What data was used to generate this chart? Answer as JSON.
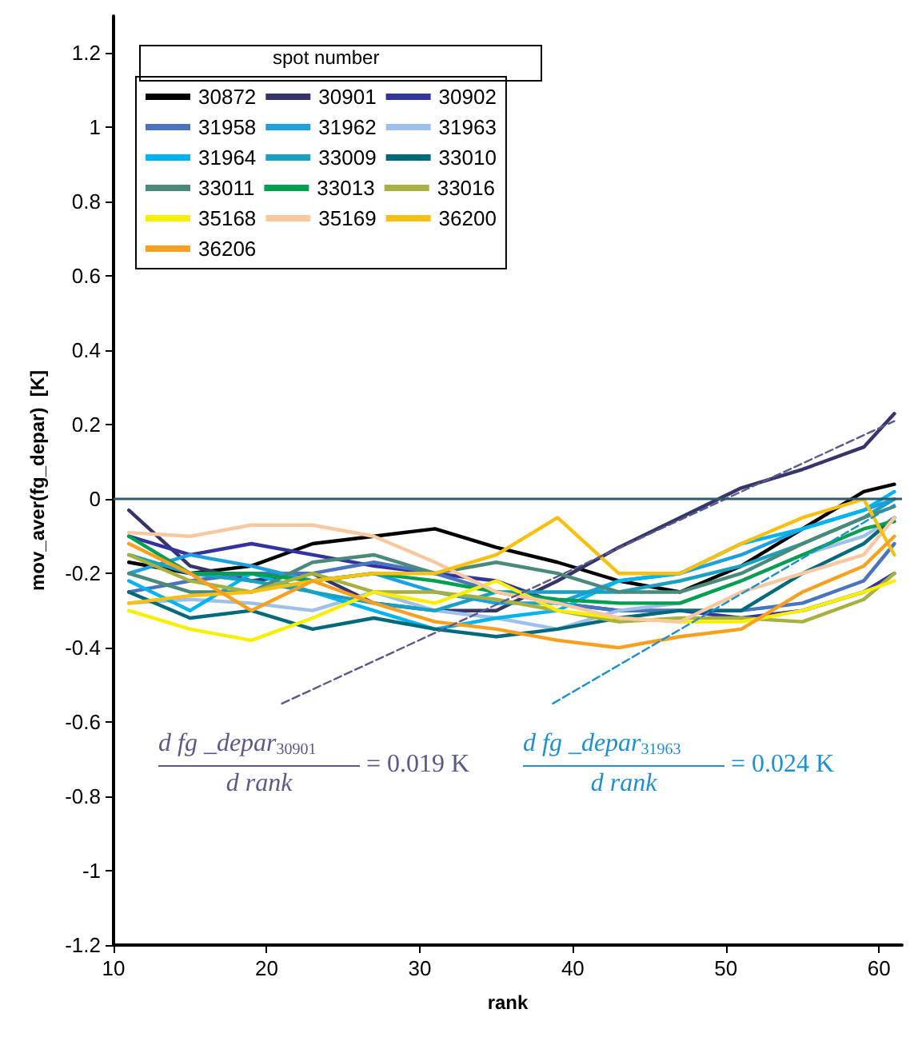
{
  "chart_data": {
    "type": "line",
    "xlabel": "rank",
    "ylabel": "mov_aver(fg_depar)  [K]",
    "legend_title": "spot number",
    "legend": "top left",
    "grid": false,
    "marker": "none",
    "line_style": "solid",
    "x": [
      11,
      15,
      19,
      23,
      27,
      31,
      35,
      39,
      43,
      47,
      51,
      55,
      59,
      61
    ],
    "xlim": [
      10,
      61.5
    ],
    "xticks": [
      10,
      20,
      30,
      40,
      50,
      60
    ],
    "ylim": [
      -1.2,
      1.3
    ],
    "yticks": [
      -1.2,
      -1,
      -0.8,
      -0.6,
      -0.4,
      -0.2,
      0,
      0.2,
      0.4,
      0.6,
      0.8,
      1,
      1.2
    ],
    "ref_lines": [
      {
        "axis": "y",
        "value": 0,
        "color": "#2e5a6e"
      }
    ],
    "series": [
      {
        "name": "30872",
        "color": "#000000",
        "values": [
          -0.17,
          -0.2,
          -0.18,
          -0.12,
          -0.1,
          -0.08,
          -0.13,
          -0.17,
          -0.22,
          -0.25,
          -0.18,
          -0.08,
          0.02,
          0.04
        ]
      },
      {
        "name": "30901",
        "color": "#35356a",
        "values": [
          -0.03,
          -0.18,
          -0.22,
          -0.2,
          -0.28,
          -0.3,
          -0.3,
          -0.22,
          -0.13,
          -0.05,
          0.03,
          0.08,
          0.14,
          0.23
        ]
      },
      {
        "name": "30902",
        "color": "#3333a0",
        "values": [
          -0.1,
          -0.15,
          -0.12,
          -0.15,
          -0.18,
          -0.2,
          -0.22,
          -0.28,
          -0.3,
          -0.3,
          -0.32,
          -0.3,
          -0.25,
          -0.2
        ]
      },
      {
        "name": "31958",
        "color": "#4a74c0",
        "values": [
          -0.25,
          -0.22,
          -0.2,
          -0.2,
          -0.17,
          -0.2,
          -0.25,
          -0.28,
          -0.3,
          -0.3,
          -0.3,
          -0.28,
          -0.22,
          -0.12
        ]
      },
      {
        "name": "31962",
        "color": "#1ea0e0",
        "values": [
          -0.2,
          -0.15,
          -0.18,
          -0.22,
          -0.2,
          -0.25,
          -0.28,
          -0.28,
          -0.22,
          -0.2,
          -0.15,
          -0.08,
          -0.03,
          0.0
        ]
      },
      {
        "name": "31963",
        "color": "#9fc0e8",
        "values": [
          -0.28,
          -0.27,
          -0.28,
          -0.3,
          -0.25,
          -0.3,
          -0.32,
          -0.35,
          -0.3,
          -0.28,
          -0.22,
          -0.15,
          -0.1,
          -0.05
        ]
      },
      {
        "name": "31964",
        "color": "#00b4f0",
        "values": [
          -0.22,
          -0.3,
          -0.2,
          -0.25,
          -0.3,
          -0.35,
          -0.32,
          -0.3,
          -0.22,
          -0.2,
          -0.12,
          -0.08,
          -0.03,
          0.02
        ]
      },
      {
        "name": "33009",
        "color": "#1aa0c0",
        "values": [
          -0.15,
          -0.2,
          -0.22,
          -0.25,
          -0.28,
          -0.3,
          -0.25,
          -0.25,
          -0.25,
          -0.22,
          -0.18,
          -0.12,
          -0.05,
          0.0
        ]
      },
      {
        "name": "33010",
        "color": "#006a7a",
        "values": [
          -0.25,
          -0.32,
          -0.3,
          -0.35,
          -0.32,
          -0.35,
          -0.37,
          -0.35,
          -0.32,
          -0.3,
          -0.3,
          -0.2,
          -0.12,
          -0.05
        ]
      },
      {
        "name": "33011",
        "color": "#4a8a7a",
        "values": [
          -0.2,
          -0.25,
          -0.25,
          -0.17,
          -0.15,
          -0.2,
          -0.17,
          -0.2,
          -0.25,
          -0.25,
          -0.2,
          -0.12,
          -0.05,
          -0.02
        ]
      },
      {
        "name": "33013",
        "color": "#00a050",
        "values": [
          -0.1,
          -0.2,
          -0.2,
          -0.22,
          -0.2,
          -0.22,
          -0.25,
          -0.27,
          -0.28,
          -0.28,
          -0.22,
          -0.15,
          -0.08,
          -0.06
        ]
      },
      {
        "name": "33016",
        "color": "#a8b040",
        "values": [
          -0.15,
          -0.22,
          -0.25,
          -0.2,
          -0.25,
          -0.25,
          -0.27,
          -0.3,
          -0.33,
          -0.32,
          -0.32,
          -0.33,
          -0.27,
          -0.2
        ]
      },
      {
        "name": "35168",
        "color": "#f8f000",
        "values": [
          -0.3,
          -0.35,
          -0.38,
          -0.32,
          -0.25,
          -0.28,
          -0.22,
          -0.3,
          -0.32,
          -0.33,
          -0.33,
          -0.3,
          -0.25,
          -0.22
        ]
      },
      {
        "name": "35169",
        "color": "#f8c8a0",
        "values": [
          -0.09,
          -0.1,
          -0.07,
          -0.07,
          -0.1,
          -0.17,
          -0.25,
          -0.28,
          -0.32,
          -0.33,
          -0.25,
          -0.2,
          -0.15,
          -0.05
        ]
      },
      {
        "name": "36200",
        "color": "#f8c010",
        "values": [
          -0.28,
          -0.26,
          -0.25,
          -0.22,
          -0.2,
          -0.2,
          -0.15,
          -0.05,
          -0.2,
          -0.2,
          -0.12,
          -0.05,
          0.0,
          -0.15
        ]
      },
      {
        "name": "36206",
        "color": "#f8a020",
        "values": [
          -0.12,
          -0.2,
          -0.3,
          -0.22,
          -0.28,
          -0.33,
          -0.35,
          -0.38,
          -0.4,
          -0.37,
          -0.35,
          -0.25,
          -0.18,
          -0.1
        ]
      },
      {
        "type": "line",
        "line_style": "dashed",
        "color": "#5a5a8a",
        "x": [
          21,
          61
        ],
        "values": [
          -0.55,
          0.21
        ]
      },
      {
        "type": "line",
        "line_style": "dashed",
        "color": "#1e90d0",
        "x": [
          38.7,
          61
        ],
        "values": [
          -0.55,
          -0.015
        ]
      }
    ],
    "annotations": [
      "d fg _depar$_{30901}$",
      "d rank",
      "= 0.019 K",
      "d fg _depar$_{31963}$",
      "d rank",
      "= 0.024 K"
    ]
  }
}
